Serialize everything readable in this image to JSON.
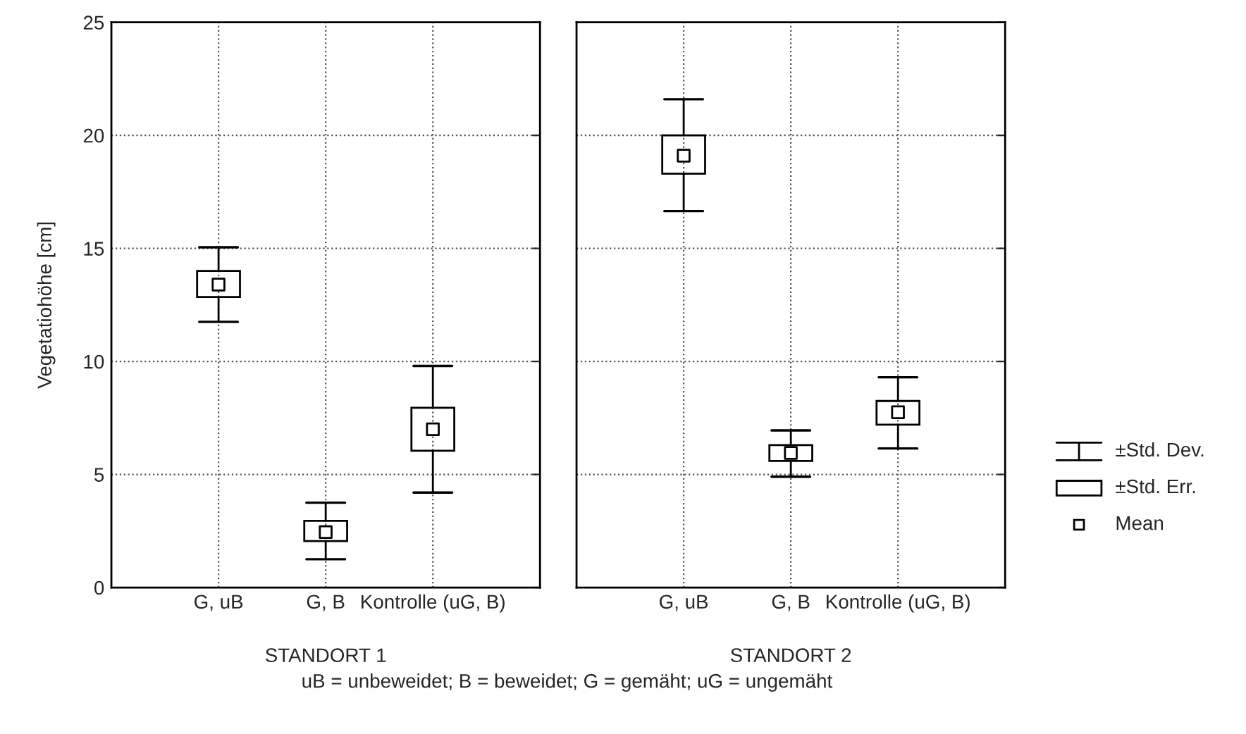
{
  "chart_data": [
    {
      "type": "box",
      "xlabel": "STANDORT 1",
      "ylabel": "Vegetatiohöhe [cm]",
      "categories": [
        "G, uB",
        "G, B",
        "Kontrolle (uG, B)"
      ],
      "ylim": [
        0,
        25
      ],
      "yticks": [
        0,
        5,
        10,
        15,
        20,
        25
      ],
      "grid": true,
      "color": "#000000",
      "boxes": [
        {
          "low": 11.75,
          "q1": 12.85,
          "q3": 14.0,
          "high": 15.05,
          "mean": 13.4
        },
        {
          "low": 1.25,
          "q1": 2.05,
          "q3": 2.95,
          "high": 3.75,
          "mean": 2.45
        },
        {
          "low": 4.2,
          "q1": 6.05,
          "q3": 7.95,
          "high": 9.8,
          "mean": 7.0
        }
      ]
    },
    {
      "type": "box",
      "xlabel": "STANDORT 2",
      "categories": [
        "G, uB",
        "G, B",
        "Kontrolle (uG, B)"
      ],
      "ylim": [
        0,
        25
      ],
      "yticks": [
        0,
        5,
        10,
        15,
        20,
        25
      ],
      "grid": true,
      "tick_labels": "x",
      "color": "#000000",
      "boxes": [
        {
          "low": 16.65,
          "q1": 18.3,
          "q3": 20.0,
          "high": 21.6,
          "mean": 19.1
        },
        {
          "low": 4.9,
          "q1": 5.6,
          "q3": 6.3,
          "high": 6.95,
          "mean": 5.95
        },
        {
          "low": 6.15,
          "q1": 7.2,
          "q3": 8.25,
          "high": 9.3,
          "mean": 7.75
        }
      ],
      "annotations": [
        "uB = unbeweidet; B = beweidet; G = gemäht; uG = ungemäht",
        "±Std. Dev.",
        "±Std. Err.",
        "Mean"
      ]
    }
  ]
}
